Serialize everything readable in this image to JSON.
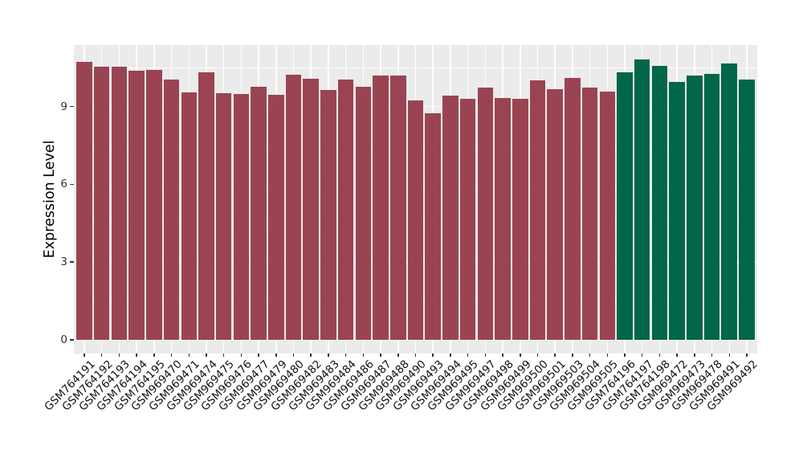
{
  "chart_data": {
    "type": "bar",
    "title": "",
    "xlabel": "",
    "ylabel": "Expression Level",
    "yticks": [
      0,
      3,
      6,
      9
    ],
    "y_minor_gridlines": [
      1.5,
      4.5,
      7.5,
      10.5
    ],
    "ylim": [
      -0.55,
      11.4
    ],
    "grid": "on",
    "legend_position": "none",
    "panel_bg_color": "#EBEBEB",
    "gridline_color": "#FFFFFF",
    "tick_color": "#333333",
    "group_colors": [
      "#9A4453",
      "#026649"
    ],
    "samples": [
      {
        "label": "GSM764191",
        "value": 10.72,
        "group": 0
      },
      {
        "label": "GSM764192",
        "value": 10.55,
        "group": 0
      },
      {
        "label": "GSM764193",
        "value": 10.53,
        "group": 0
      },
      {
        "label": "GSM764194",
        "value": 10.37,
        "group": 0
      },
      {
        "label": "GSM764195",
        "value": 10.41,
        "group": 0
      },
      {
        "label": "GSM969470",
        "value": 10.04,
        "group": 0
      },
      {
        "label": "GSM969471",
        "value": 9.55,
        "group": 0
      },
      {
        "label": "GSM969474",
        "value": 10.32,
        "group": 0
      },
      {
        "label": "GSM969475",
        "value": 9.52,
        "group": 0
      },
      {
        "label": "GSM969476",
        "value": 9.48,
        "group": 0
      },
      {
        "label": "GSM969477",
        "value": 9.75,
        "group": 0
      },
      {
        "label": "GSM969479",
        "value": 9.45,
        "group": 0
      },
      {
        "label": "GSM969480",
        "value": 10.23,
        "group": 0
      },
      {
        "label": "GSM969482",
        "value": 10.07,
        "group": 0
      },
      {
        "label": "GSM969483",
        "value": 9.64,
        "group": 0
      },
      {
        "label": "GSM969484",
        "value": 10.03,
        "group": 0
      },
      {
        "label": "GSM969486",
        "value": 9.77,
        "group": 0
      },
      {
        "label": "GSM969487",
        "value": 10.19,
        "group": 0
      },
      {
        "label": "GSM969488",
        "value": 10.19,
        "group": 0
      },
      {
        "label": "GSM969490",
        "value": 9.24,
        "group": 0
      },
      {
        "label": "GSM969493",
        "value": 8.74,
        "group": 0
      },
      {
        "label": "GSM969494",
        "value": 9.42,
        "group": 0
      },
      {
        "label": "GSM969495",
        "value": 9.31,
        "group": 0
      },
      {
        "label": "GSM969497",
        "value": 9.73,
        "group": 0
      },
      {
        "label": "GSM969498",
        "value": 9.34,
        "group": 0
      },
      {
        "label": "GSM969499",
        "value": 9.29,
        "group": 0
      },
      {
        "label": "GSM969500",
        "value": 10.0,
        "group": 0
      },
      {
        "label": "GSM969501",
        "value": 9.67,
        "group": 0
      },
      {
        "label": "GSM969503",
        "value": 10.1,
        "group": 0
      },
      {
        "label": "GSM969504",
        "value": 9.72,
        "group": 0
      },
      {
        "label": "GSM969505",
        "value": 9.59,
        "group": 0
      },
      {
        "label": "GSM764196",
        "value": 10.32,
        "group": 1
      },
      {
        "label": "GSM764197",
        "value": 10.82,
        "group": 1
      },
      {
        "label": "GSM764198",
        "value": 10.56,
        "group": 1
      },
      {
        "label": "GSM969472",
        "value": 9.95,
        "group": 1
      },
      {
        "label": "GSM969473",
        "value": 10.19,
        "group": 1
      },
      {
        "label": "GSM969478",
        "value": 10.27,
        "group": 1
      },
      {
        "label": "GSM969491",
        "value": 10.67,
        "group": 1
      },
      {
        "label": "GSM969492",
        "value": 10.04,
        "group": 1
      }
    ]
  }
}
